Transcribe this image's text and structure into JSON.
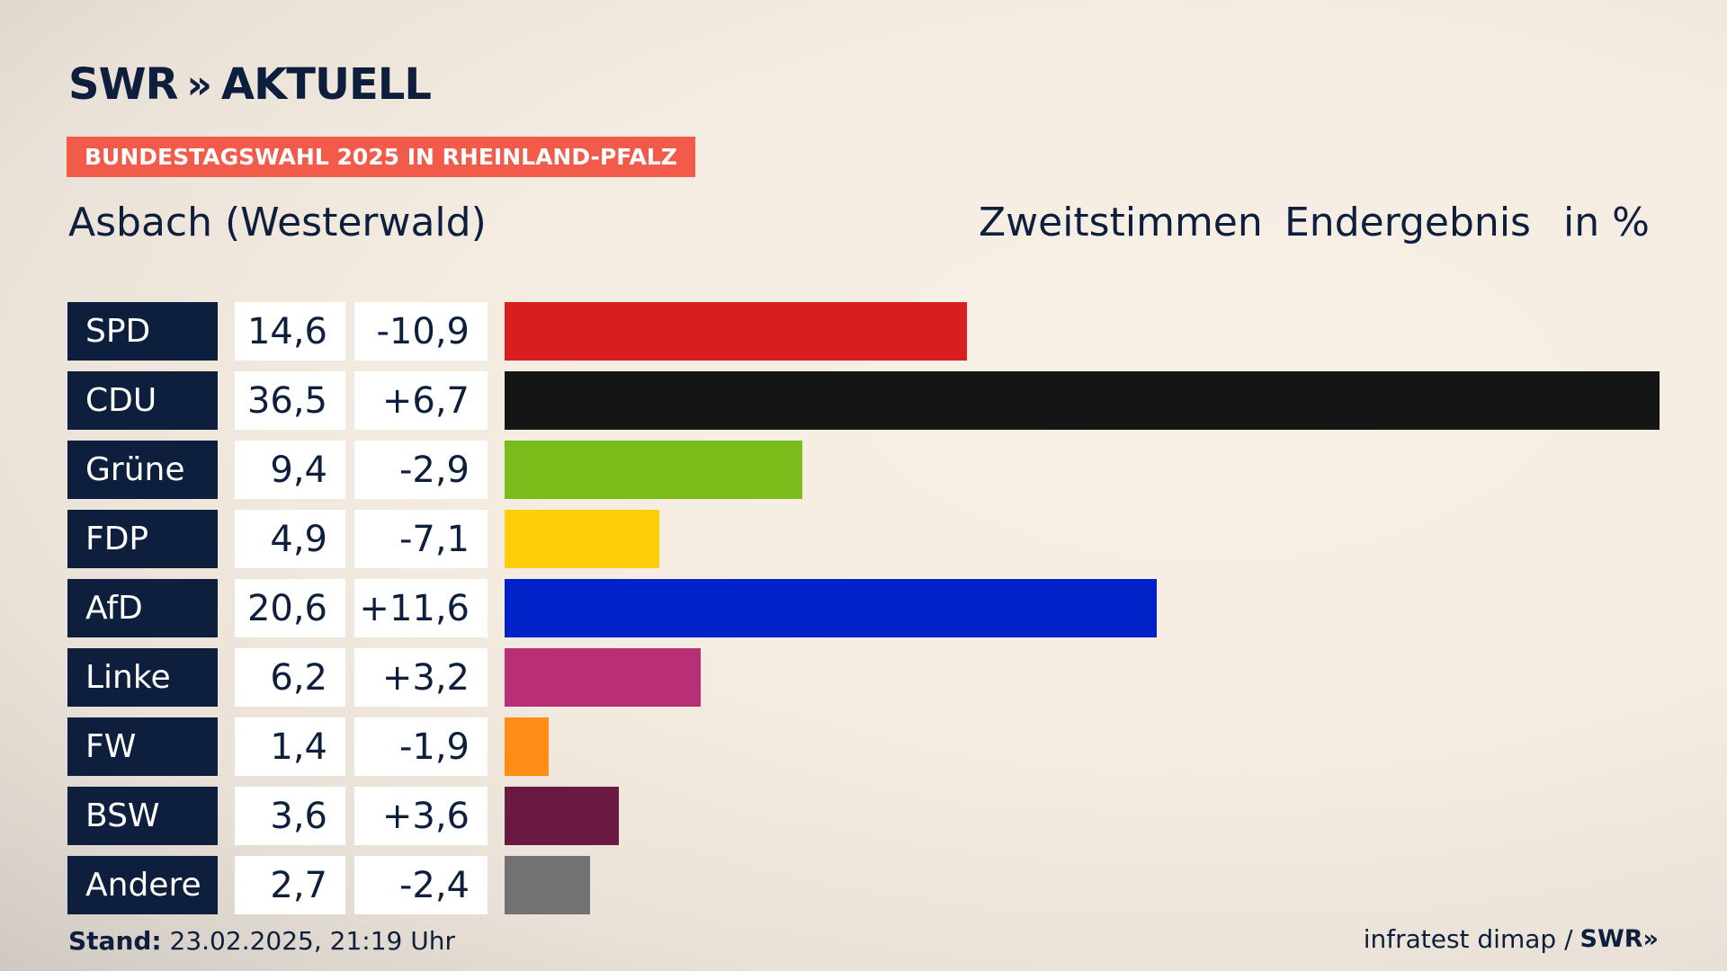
{
  "brand": {
    "logo_text": "SWR",
    "logo_chevrons": "»",
    "logo_suffix": "AKTUELL"
  },
  "banner": "BUNDESTAGSWAHL 2025 IN RHEINLAND-PFALZ",
  "location": "Asbach (Westerwald)",
  "headers": {
    "vote_type": "Zweitstimmen",
    "status": "Endergebnis",
    "unit": "in %"
  },
  "colors": {
    "navy": "#0d1f3c",
    "banner": "#f25a4a"
  },
  "chart_data": {
    "type": "bar",
    "orientation": "horizontal",
    "categories": [
      "SPD",
      "CDU",
      "Grüne",
      "FDP",
      "AfD",
      "Linke",
      "FW",
      "BSW",
      "Andere"
    ],
    "values": [
      14.6,
      36.5,
      9.4,
      4.9,
      20.6,
      6.2,
      1.4,
      3.6,
      2.7
    ],
    "value_labels": [
      "14,6",
      "36,5",
      "9,4",
      "4,9",
      "20,6",
      "6,2",
      "1,4",
      "3,6",
      "2,7"
    ],
    "diff_labels": [
      "-10,9",
      "+6,7",
      "-2,9",
      "-7,1",
      "+11,6",
      "+3,2",
      "-1,9",
      "+3,6",
      "-2,4"
    ],
    "colors": [
      "#d71f1f",
      "#151515",
      "#7abd1b",
      "#ffcd0a",
      "#0020c8",
      "#b82f76",
      "#ff8c14",
      "#6a1940",
      "#727272"
    ],
    "xlim": [
      0,
      36.5
    ]
  },
  "footer": {
    "stand_label": "Stand:",
    "stand_value": "23.02.2025, 21:19 Uhr",
    "source": "infratest dimap /",
    "source_brand": "SWR",
    "source_chevrons": "»"
  }
}
